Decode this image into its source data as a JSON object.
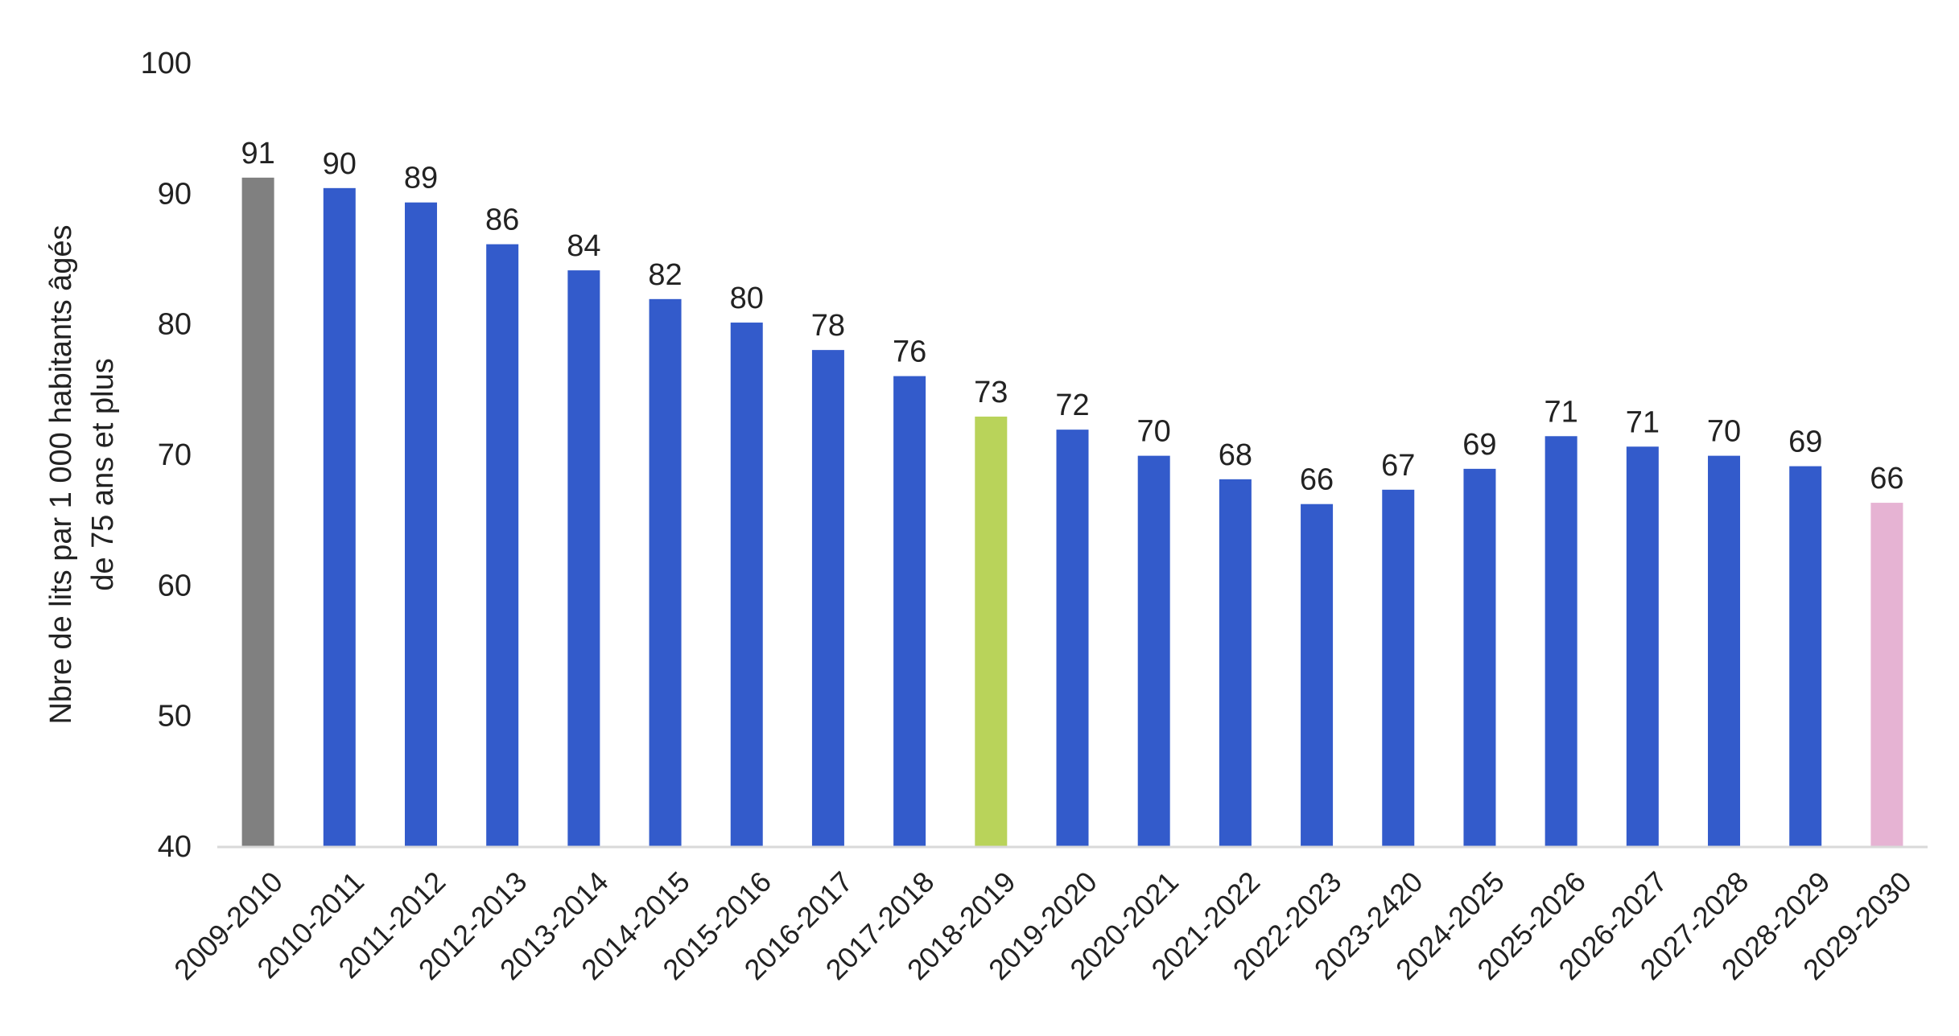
{
  "chart_data": {
    "type": "bar",
    "title": "",
    "xlabel": "",
    "ylabel_lines": [
      "Nbre de lits par 1 000 habitants âgés",
      "de 75 ans et plus"
    ],
    "ylim": [
      40,
      100
    ],
    "yticks": [
      40,
      50,
      60,
      70,
      80,
      90,
      100
    ],
    "grid": false,
    "legend": "none",
    "categories": [
      "2009-2010",
      "2010-2011",
      "2011-2012",
      "2012-2013",
      "2013-2014",
      "2014-2015",
      "2015-2016",
      "2016-2017",
      "2017-2018",
      "2018-2019",
      "2019-2020",
      "2020-2021",
      "2021-2022",
      "2022-2023",
      "2023-2420",
      "2024-2025",
      "2025-2026",
      "2026-2027",
      "2027-2028",
      "2028-2029",
      "2029-2030"
    ],
    "values": [
      91.2,
      90.4,
      89.3,
      86.1,
      84.1,
      81.9,
      80.1,
      78.0,
      76.0,
      72.9,
      71.9,
      69.9,
      68.1,
      66.2,
      67.3,
      68.9,
      71.4,
      70.6,
      69.9,
      69.1,
      66.3
    ],
    "data_labels": [
      "91",
      "90",
      "89",
      "86",
      "84",
      "82",
      "80",
      "78",
      "76",
      "73",
      "72",
      "70",
      "68",
      "66",
      "67",
      "69",
      "71",
      "71",
      "70",
      "69",
      "66"
    ],
    "bar_colors": [
      "#808080",
      "#335BCB",
      "#335BCB",
      "#335BCB",
      "#335BCB",
      "#335BCB",
      "#335BCB",
      "#335BCB",
      "#335BCB",
      "#B9D35A",
      "#335BCB",
      "#335BCB",
      "#335BCB",
      "#335BCB",
      "#335BCB",
      "#335BCB",
      "#335BCB",
      "#335BCB",
      "#335BCB",
      "#335BCB",
      "#E6B3D3"
    ],
    "axis_color": "#D9D9D9"
  }
}
